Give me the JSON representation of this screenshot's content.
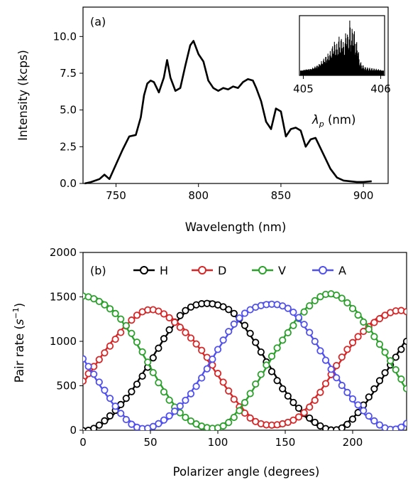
{
  "chart_data": [
    {
      "panel_label": "(a)",
      "type": "line",
      "xlabel": "Wavelength (nm)",
      "ylabel": "Intensity (kcps)",
      "xlim": [
        730,
        915
      ],
      "ylim": [
        0,
        12
      ],
      "xticks": [
        750,
        800,
        850,
        900
      ],
      "yticks": [
        0.0,
        2.5,
        5.0,
        7.5,
        10.0
      ],
      "grid": false,
      "series": [
        {
          "color": "#000000",
          "x": [
            731,
            735,
            740,
            743,
            746,
            750,
            754,
            758,
            762,
            765,
            767,
            769,
            771,
            773,
            776,
            779,
            781,
            783,
            786,
            789,
            792,
            795,
            797,
            800,
            803,
            806,
            809,
            812,
            815,
            818,
            821,
            824,
            827,
            830,
            833,
            835,
            838,
            841,
            844,
            847,
            850,
            853,
            856,
            859,
            862,
            865,
            868,
            871,
            874,
            877,
            880,
            884,
            888,
            892,
            896,
            900,
            905
          ],
          "y": [
            0.0,
            0.1,
            0.3,
            0.6,
            0.3,
            1.3,
            2.3,
            3.2,
            3.3,
            4.5,
            6.0,
            6.8,
            7.0,
            6.9,
            6.2,
            7.2,
            8.4,
            7.2,
            6.3,
            6.5,
            8.0,
            9.4,
            9.7,
            8.8,
            8.3,
            7.0,
            6.5,
            6.3,
            6.5,
            6.4,
            6.6,
            6.5,
            6.9,
            7.1,
            7.0,
            6.5,
            5.6,
            4.2,
            3.7,
            5.1,
            4.9,
            3.2,
            3.7,
            3.8,
            3.6,
            2.5,
            3.0,
            3.1,
            2.4,
            1.7,
            1.0,
            0.4,
            0.2,
            0.15,
            0.1,
            0.1,
            0.15
          ]
        }
      ],
      "inset": {
        "xlabel": "λp (nm)",
        "xticks": [
          405,
          406
        ],
        "xlim": [
          404.95,
          406.05
        ],
        "ylim": [
          0,
          1
        ],
        "baseline": 0.08,
        "spectrum_x": [
          405.0,
          405.1,
          405.2,
          405.25,
          405.3,
          405.35,
          405.4,
          405.42,
          405.44,
          405.46,
          405.48,
          405.5,
          405.52,
          405.54,
          405.56,
          405.58,
          405.6,
          405.62,
          405.64,
          405.66,
          405.68,
          405.7,
          405.72,
          405.75,
          405.8,
          405.9,
          406.0
        ],
        "spectrum_y": [
          0.12,
          0.14,
          0.22,
          0.3,
          0.38,
          0.45,
          0.62,
          0.58,
          0.55,
          0.7,
          0.6,
          0.72,
          0.55,
          0.65,
          0.9,
          0.62,
          0.96,
          0.7,
          0.88,
          0.75,
          0.55,
          0.62,
          0.3,
          0.2,
          0.14,
          0.12,
          0.1
        ]
      }
    },
    {
      "panel_label": "(b)",
      "type": "scatter",
      "xlabel": "Polarizer angle (degrees)",
      "ylabel": "Pair rate (s⁻¹)",
      "xlim": [
        0,
        240
      ],
      "ylim": [
        0,
        2000
      ],
      "xticks": [
        0,
        50,
        100,
        150,
        200
      ],
      "yticks": [
        0,
        500,
        1000,
        1500,
        2000
      ],
      "grid": false,
      "legend_position": "top",
      "series": [
        {
          "name": "H",
          "color": "#000000",
          "min": 15,
          "max": 1450,
          "peak_angle": 93
        },
        {
          "name": "D",
          "color": "#d62728",
          "min": 35,
          "max": 1335,
          "peak_angle": 52
        },
        {
          "name": "V",
          "color": "#2ca02c",
          "min": 10,
          "max": 1510,
          "peak_angle": 3
        },
        {
          "name": "A",
          "color": "#5050ee",
          "min": 30,
          "max": 1440,
          "peak_angle": 138
        }
      ],
      "point_spacing_degrees": 4,
      "fit": "sinusoidal"
    }
  ]
}
